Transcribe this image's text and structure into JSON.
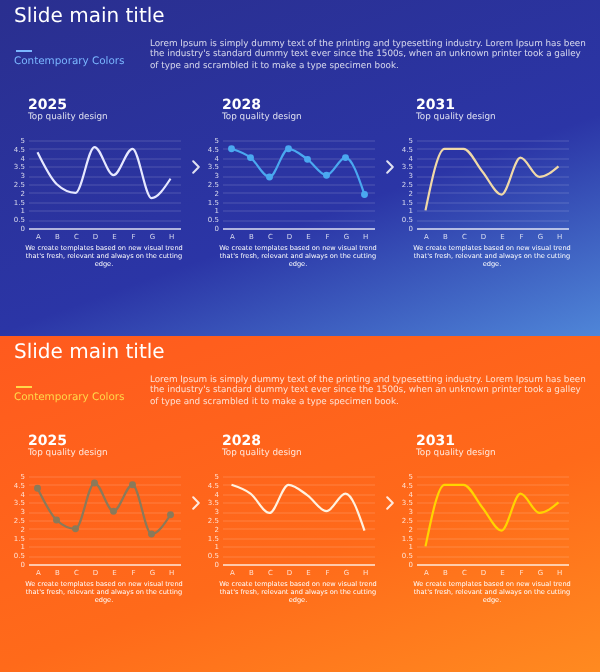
{
  "chart_data": [
    {
      "type": "other",
      "title": "Slide main title",
      "subtitle": "Contemporary Colors",
      "annotations": [
        "Lorem Ipsum is simply dummy text of the printing and typesetting industry. Lorem Ipsum has been the industry's standard dummy text ever since the 1500s, when an unknown printer took a galley of type and scrambled it to make a type specimen book."
      ]
    },
    {
      "type": "line",
      "title": "2025",
      "subtitle": "Top quality design",
      "categories": [
        "A",
        "B",
        "C",
        "D",
        "E",
        "F",
        "G",
        "H"
      ],
      "series": [
        {
          "color": "#e6e8ff",
          "values": [
            4.3,
            2.5,
            2.0,
            4.6,
            3.0,
            4.5,
            1.7,
            2.8
          ]
        }
      ],
      "ylim": [
        0,
        5
      ],
      "yticks": [
        0,
        0.5,
        1,
        1.5,
        2,
        2.5,
        3,
        3.5,
        4,
        4.5,
        5
      ],
      "grid": "y",
      "annotations": [
        "We create templates based on new visual trend that's fresh, relevant and always on the cutting edge."
      ]
    },
    {
      "type": "line",
      "title": "2028",
      "subtitle": "Top quality design",
      "categories": [
        "A",
        "B",
        "C",
        "D",
        "E",
        "F",
        "G",
        "H"
      ],
      "series": [
        {
          "color": "#4aa8f0",
          "values": [
            4.5,
            4.0,
            2.9,
            4.5,
            3.9,
            3.0,
            4.0,
            1.9
          ]
        }
      ],
      "ylim": [
        0,
        5
      ],
      "yticks": [
        0,
        0.5,
        1,
        1.5,
        2,
        2.5,
        3,
        3.5,
        4,
        4.5,
        5
      ],
      "grid": "y",
      "marker": "circle",
      "annotations": [
        "We create templates based on new visual trend that's fresh, relevant and always on the cutting edge."
      ]
    },
    {
      "type": "line",
      "title": "2031",
      "subtitle": "Top quality design",
      "categories": [
        "A",
        "B",
        "C",
        "D",
        "E",
        "F",
        "G",
        "H"
      ],
      "series": [
        {
          "color": "#f0d9a8",
          "values": [
            1.0,
            4.5,
            4.5,
            3.2,
            1.9,
            4.0,
            2.9,
            3.5
          ]
        }
      ],
      "ylim": [
        0,
        5
      ],
      "yticks": [
        0,
        0.5,
        1,
        1.5,
        2,
        2.5,
        3,
        3.5,
        4,
        4.5,
        5
      ],
      "grid": "y",
      "annotations": [
        "We create templates based on new visual trend that's fresh, relevant and always on the cutting edge."
      ]
    },
    {
      "type": "other",
      "title": "Slide main title",
      "subtitle": "Contemporary Colors",
      "annotations": [
        "Lorem Ipsum is simply dummy text of the printing and typesetting industry. Lorem Ipsum has been the industry's standard dummy text ever since the 1500s, when an unknown printer took a galley of type and scrambled it to make a type specimen book."
      ]
    },
    {
      "type": "line",
      "title": "2025",
      "subtitle": "Top quality design",
      "categories": [
        "A",
        "B",
        "C",
        "D",
        "E",
        "F",
        "G",
        "H"
      ],
      "series": [
        {
          "color": "#8a7a5a",
          "values": [
            4.3,
            2.5,
            2.0,
            4.6,
            3.0,
            4.5,
            1.7,
            2.8
          ]
        }
      ],
      "ylim": [
        0,
        5
      ],
      "yticks": [
        0,
        0.5,
        1,
        1.5,
        2,
        2.5,
        3,
        3.5,
        4,
        4.5,
        5
      ],
      "grid": "y",
      "marker": "circle",
      "annotations": [
        "We create templates based on new visual trend that's fresh, relevant and always on the cutting edge."
      ]
    },
    {
      "type": "line",
      "title": "2028",
      "subtitle": "Top quality design",
      "categories": [
        "A",
        "B",
        "C",
        "D",
        "E",
        "F",
        "G",
        "H"
      ],
      "series": [
        {
          "color": "#fff2e0",
          "values": [
            4.5,
            4.0,
            2.9,
            4.5,
            3.9,
            3.0,
            4.0,
            1.9
          ]
        }
      ],
      "ylim": [
        0,
        5
      ],
      "yticks": [
        0,
        0.5,
        1,
        1.5,
        2,
        2.5,
        3,
        3.5,
        4,
        4.5,
        5
      ],
      "grid": "y",
      "annotations": [
        "We create templates based on new visual trend that's fresh, relevant and always on the cutting edge."
      ]
    },
    {
      "type": "line",
      "title": "2031",
      "subtitle": "Top quality design",
      "categories": [
        "A",
        "B",
        "C",
        "D",
        "E",
        "F",
        "G",
        "H"
      ],
      "series": [
        {
          "color": "#ffd400",
          "values": [
            1.0,
            4.5,
            4.5,
            3.2,
            1.9,
            4.0,
            2.9,
            3.5
          ]
        }
      ],
      "ylim": [
        0,
        5
      ],
      "yticks": [
        0,
        0.5,
        1,
        1.5,
        2,
        2.5,
        3,
        3.5,
        4,
        4.5,
        5
      ],
      "grid": "y",
      "annotations": [
        "We create templates based on new visual trend that's fresh, relevant and always on the cutting edge."
      ]
    }
  ]
}
